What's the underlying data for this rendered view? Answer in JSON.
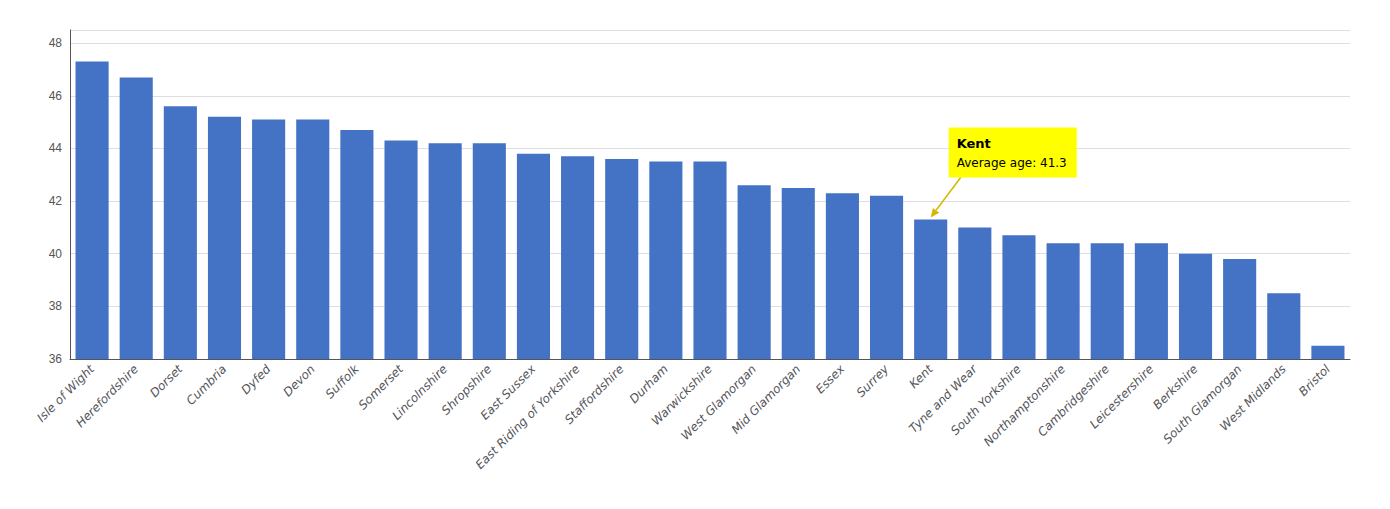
{
  "chart_data": {
    "type": "bar",
    "categories": [
      "Isle of Wight",
      "Herefordshire",
      "Dorset",
      "Cumbria",
      "Dyfed",
      "Devon",
      "Suffolk",
      "Somerset",
      "Lincolnshire",
      "Shropshire",
      "East Sussex",
      "East Riding of Yorkshire",
      "Staffordshire",
      "Durham",
      "Warwickshire",
      "West Glamorgan",
      "Mid Glamorgan",
      "Essex",
      "Surrey",
      "Kent",
      "Tyne and Wear",
      "South Yorkshire",
      "Northamptonshire",
      "Cambridgeshire",
      "Leicestershire",
      "Berkshire",
      "South Glamorgan",
      "West Midlands",
      "Bristol"
    ],
    "values": [
      47.3,
      46.7,
      45.6,
      45.2,
      45.1,
      45.1,
      44.7,
      44.3,
      44.2,
      44.2,
      43.8,
      43.7,
      43.6,
      43.5,
      43.5,
      42.6,
      42.5,
      42.3,
      42.2,
      41.3,
      41.0,
      40.7,
      40.4,
      40.4,
      40.4,
      40.0,
      39.8,
      38.5,
      36.5
    ],
    "color": "#4472c4",
    "ylim": [
      36,
      48.5
    ],
    "yticks": [
      36,
      38,
      40,
      42,
      44,
      46,
      48
    ],
    "grid": true,
    "annotations": [
      {
        "x": "Kent",
        "y": 41.3,
        "text": [
          "Kent",
          "Average age: 41.3"
        ]
      }
    ]
  }
}
